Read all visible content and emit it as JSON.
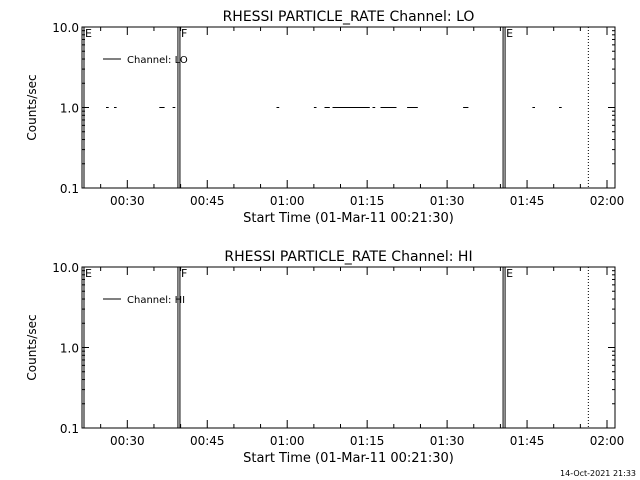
{
  "chart_data": [
    {
      "type": "line",
      "title": "RHESSI PARTICLE_RATE Channel: LO",
      "xlabel": "Start Time (01-Mar-11 00:21:30)",
      "ylabel": "Counts/sec",
      "y_scale": "log",
      "ylim": [
        0.1,
        10.0
      ],
      "y_ticks": [
        "10.0",
        "1.0",
        "0.1"
      ],
      "xlim": [
        "00:21:30",
        "02:01:30"
      ],
      "x_ticks": [
        "00:30",
        "00:45",
        "01:00",
        "01:15",
        "01:30",
        "01:45",
        "02:00"
      ],
      "legend": "top-left",
      "grid": false,
      "series": [
        {
          "name": "Channel: LO",
          "segments": [
            [
              [
                "00:26:00",
                1.0
              ],
              [
                "00:26:30",
                1.0
              ]
            ],
            [
              [
                "00:27:30",
                1.0
              ],
              [
                "00:28:00",
                1.0
              ]
            ],
            [
              [
                "00:36:00",
                1.0
              ],
              [
                "00:37:00",
                1.0
              ]
            ],
            [
              [
                "00:38:30",
                1.0
              ],
              [
                "00:39:00",
                1.0
              ]
            ],
            [
              [
                "00:58:00",
                1.0
              ],
              [
                "00:58:30",
                1.0
              ]
            ],
            [
              [
                "01:05:00",
                1.0
              ],
              [
                "01:05:30",
                1.0
              ]
            ],
            [
              [
                "01:07:00",
                1.0
              ],
              [
                "01:08:00",
                1.0
              ]
            ],
            [
              [
                "01:08:30",
                1.0
              ],
              [
                "01:15:30",
                1.0
              ]
            ],
            [
              [
                "01:16:00",
                1.0
              ],
              [
                "01:16:30",
                1.0
              ]
            ],
            [
              [
                "01:17:30",
                1.0
              ],
              [
                "01:20:30",
                1.0
              ]
            ],
            [
              [
                "01:22:30",
                1.0
              ],
              [
                "01:24:30",
                1.0
              ]
            ],
            [
              [
                "01:33:00",
                1.0
              ],
              [
                "01:34:00",
                1.0
              ]
            ],
            [
              [
                "01:46:00",
                1.0
              ],
              [
                "01:46:30",
                1.0
              ]
            ],
            [
              [
                "01:51:00",
                1.0
              ],
              [
                "01:51:30",
                1.0
              ]
            ]
          ]
        }
      ],
      "markers": [
        {
          "label": "E",
          "time": "00:21:30",
          "style": "solid"
        },
        {
          "label": "F",
          "time": "00:39:30",
          "style": "solid"
        },
        {
          "label": "E",
          "time": "01:40:30",
          "style": "solid"
        },
        {
          "label": "",
          "time": "01:56:30",
          "style": "dotted"
        }
      ]
    },
    {
      "type": "line",
      "title": "RHESSI PARTICLE_RATE Channel: HI",
      "xlabel": "Start Time (01-Mar-11 00:21:30)",
      "ylabel": "Counts/sec",
      "y_scale": "log",
      "ylim": [
        0.1,
        10.0
      ],
      "y_ticks": [
        "10.0",
        "1.0",
        "0.1"
      ],
      "xlim": [
        "00:21:30",
        "02:01:30"
      ],
      "x_ticks": [
        "00:30",
        "00:45",
        "01:00",
        "01:15",
        "01:30",
        "01:45",
        "02:00"
      ],
      "legend": "top-left",
      "grid": false,
      "series": [
        {
          "name": "Channel: HI",
          "segments": []
        }
      ],
      "markers": [
        {
          "label": "E",
          "time": "00:21:30",
          "style": "solid"
        },
        {
          "label": "F",
          "time": "00:39:30",
          "style": "solid"
        },
        {
          "label": "E",
          "time": "01:40:30",
          "style": "solid"
        },
        {
          "label": "",
          "time": "01:56:30",
          "style": "dotted"
        }
      ]
    }
  ],
  "footer": {
    "stamp": "14-Oct-2021 21:33"
  }
}
